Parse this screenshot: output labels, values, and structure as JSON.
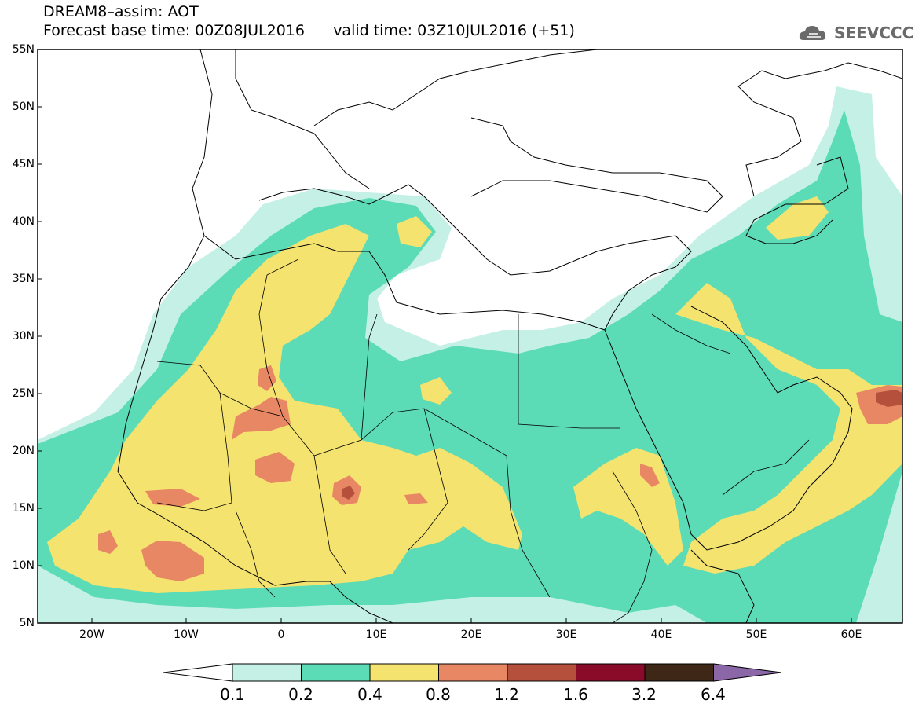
{
  "title": {
    "line1": "DREAM8–assim: AOT",
    "line2": "Forecast base time: 00Z08JUL2016      valid time: 03Z10JUL2016 (+51)"
  },
  "logo": {
    "text": "SEEVCCC",
    "icon": "cloud-icon",
    "color": "#6a6a6a"
  },
  "map": {
    "lat_labels": [
      "55N",
      "50N",
      "45N",
      "40N",
      "35N",
      "30N",
      "25N",
      "20N",
      "15N",
      "10N",
      "5N"
    ],
    "lon_labels": [
      "20W",
      "10W",
      "0",
      "10E",
      "20E",
      "30E",
      "40E",
      "50E",
      "60E"
    ]
  },
  "colorbar": {
    "levels": [
      "0.1",
      "0.2",
      "0.4",
      "0.8",
      "1.2",
      "1.6",
      "3.2",
      "6.4"
    ],
    "colors": [
      "#ffffff",
      "#c5f0e6",
      "#5cdbb7",
      "#f4e36e",
      "#e88763",
      "#b5503c",
      "#8a0a2a",
      "#3e2717",
      "#8c67a8"
    ]
  }
}
